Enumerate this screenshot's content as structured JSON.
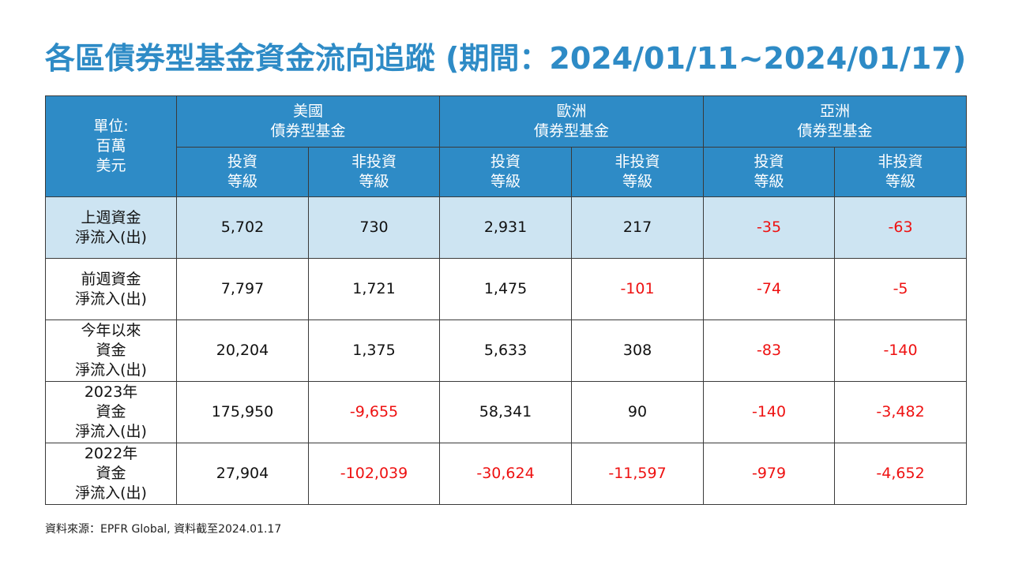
{
  "title": "各區債券型基金資金流向追蹤 (期間：2024/01/11~2024/01/17)",
  "table": {
    "unit_label": "單位:\n百萬\n美元",
    "regions": [
      {
        "label": "美國\n債券型基金"
      },
      {
        "label": "歐洲\n債券型基金"
      },
      {
        "label": "亞洲\n債券型基金"
      }
    ],
    "subheaders": [
      "投資\n等級",
      "非投資\n等級",
      "投資\n等級",
      "非投資\n等級",
      "投資\n等級",
      "非投資\n等級"
    ],
    "rows": [
      {
        "label": "上週資金\n淨流入(出)",
        "values": [
          "5,702",
          "730",
          "2,931",
          "217",
          "-35",
          "-63"
        ]
      },
      {
        "label": "前週資金\n淨流入(出)",
        "values": [
          "7,797",
          "1,721",
          "1,475",
          "-101",
          "-74",
          "-5"
        ]
      },
      {
        "label": "今年以來\n資金\n淨流入(出)",
        "values": [
          "20,204",
          "1,375",
          "5,633",
          "308",
          "-83",
          "-140"
        ]
      },
      {
        "label": "2023年\n資金\n淨流入(出)",
        "values": [
          "175,950",
          "-9,655",
          "58,341",
          "90",
          "-140",
          "-3,482"
        ]
      },
      {
        "label": "2022年\n資金\n淨流入(出)",
        "values": [
          "27,904",
          "-102,039",
          "-30,624",
          "-11,597",
          "-979",
          "-4,652"
        ]
      }
    ]
  },
  "source_note": "資料來源：EPFR Global, 資料截至2024.01.17",
  "colors": {
    "header_blue": "#2e8bc6",
    "highlight_row": "#cde4f2",
    "negative_red": "#ee1111"
  }
}
